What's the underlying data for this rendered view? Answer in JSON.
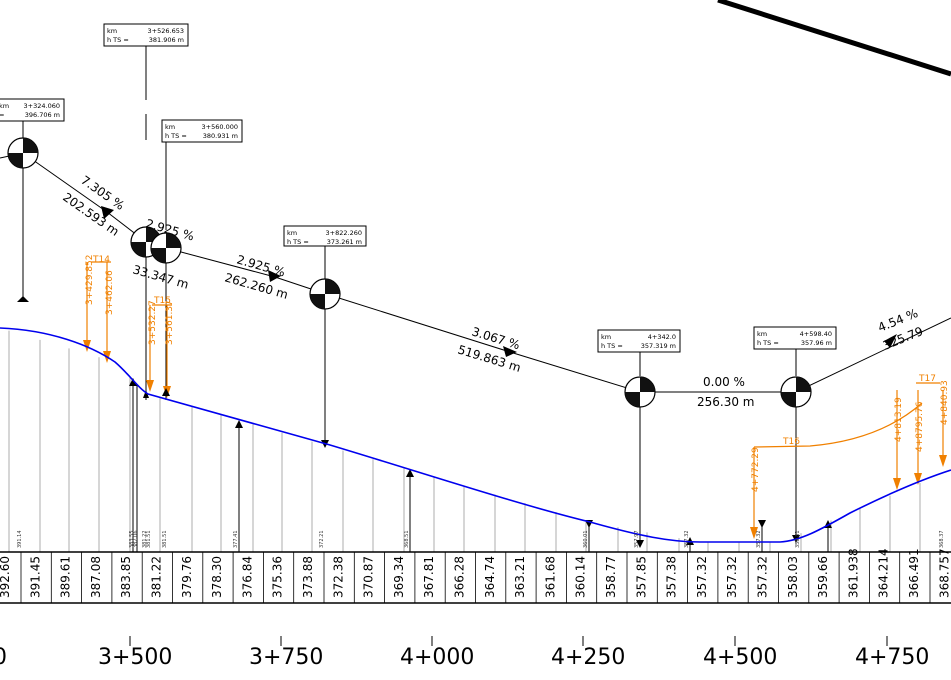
{
  "km_boxes": [
    {
      "km_label": "km",
      "km": "3+526.653",
      "h_label": "h TS =",
      "h": "381.906 m"
    },
    {
      "km_label": "km",
      "km": "3+324.060",
      "h_label": "=",
      "h": "396.706 m"
    },
    {
      "km_label": "km",
      "km": "3+560.000",
      "h_label": "h TS =",
      "h": "380.931 m"
    },
    {
      "km_label": "km",
      "km": "3+822.260",
      "h_label": "h TS =",
      "h": "373.261 m"
    },
    {
      "km_label": "km",
      "km": "4+342.0",
      "h_label": "h TS =",
      "h": "357.319 m"
    },
    {
      "km_label": "km",
      "km": "4+598.40",
      "h_label": "h TS =",
      "h": "357.96 m"
    }
  ],
  "grade_labels": [
    {
      "slope": "7.305 %",
      "length": "202.593 m"
    },
    {
      "slope": "2.925 %",
      "length": "33.347 m"
    },
    {
      "slope": "2.925 %",
      "length": "262.260 m"
    },
    {
      "slope": "3.067 %",
      "length": "519.863 m"
    },
    {
      "slope": "0.00 %",
      "length": "256.30 m"
    },
    {
      "slope": "4.54 %",
      "length": "325.79"
    }
  ],
  "orange_labels": [
    {
      "text": "T14"
    },
    {
      "text": "3+429.852"
    },
    {
      "text": "3+462.06"
    },
    {
      "text": "T15"
    },
    {
      "text": "3+532.27"
    },
    {
      "text": "3+561.37"
    },
    {
      "text": "T16"
    },
    {
      "text": "4+772.29"
    },
    {
      "text": "T17"
    },
    {
      "text": "4+813.19"
    },
    {
      "text": "4+8795.76"
    },
    {
      "text": "4+840.93"
    }
  ],
  "elevations": [
    "392.60",
    "391.45",
    "389.61",
    "387.08",
    "383.85",
    "381.22",
    "379.76",
    "378.30",
    "376.84",
    "375.36",
    "373.88",
    "372.38",
    "370.87",
    "369.34",
    "367.81",
    "366.28",
    "364.74",
    "363.21",
    "361.68",
    "360.14",
    "358.77",
    "357.85",
    "357.38",
    "357.32",
    "357.32",
    "357.32",
    "358.03",
    "359.66",
    "361.938",
    "364.214",
    "366.491",
    "368.757"
  ],
  "stations": [
    "0",
    "3+500",
    "3+750",
    "4+000",
    "4+250",
    "4+500",
    "4+750"
  ],
  "small_labels": [
    "391.14",
    "383.55",
    "382.06",
    "381.22",
    "381.51",
    "381.51",
    "377.41",
    "372.21",
    "368.51",
    "360.01",
    "357.97",
    "357.32",
    "357.32",
    "358.81",
    "368.37"
  ],
  "colors": {
    "profile": "#0000ee",
    "orange": "#f08000",
    "line": "#000000"
  }
}
